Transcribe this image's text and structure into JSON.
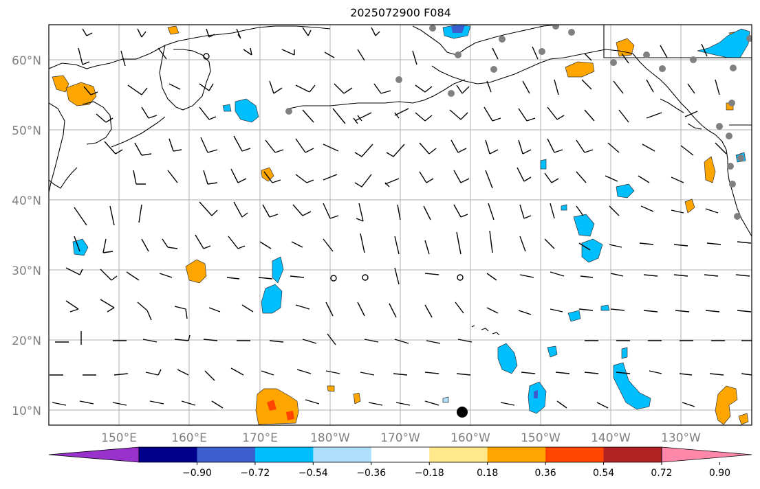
{
  "title": "2025072900 F084",
  "map": {
    "lat_labels": [
      "60°N",
      "50°N",
      "40°N",
      "30°N",
      "20°N",
      "10°N"
    ],
    "lon_labels": [
      "150°E",
      "160°E",
      "170°E",
      "180°W",
      "170°W",
      "160°W",
      "150°W",
      "140°W",
      "130°W"
    ],
    "coastline_color": "#000000",
    "grid_color": "#b0b0b0",
    "station_marker_color": "#808080"
  },
  "colorbar": {
    "ticks": [
      "−0.90",
      "−0.72",
      "−0.54",
      "−0.36",
      "−0.18",
      "0.18",
      "0.36",
      "0.54",
      "0.72",
      "0.90"
    ],
    "colors": [
      "#9932cc",
      "#00008b",
      "#3a5fcd",
      "#00bfff",
      "#aedffb",
      "#ffffff",
      "#ffe98a",
      "#ffa500",
      "#ff4500",
      "#b22222",
      "#ff88aa"
    ]
  }
}
